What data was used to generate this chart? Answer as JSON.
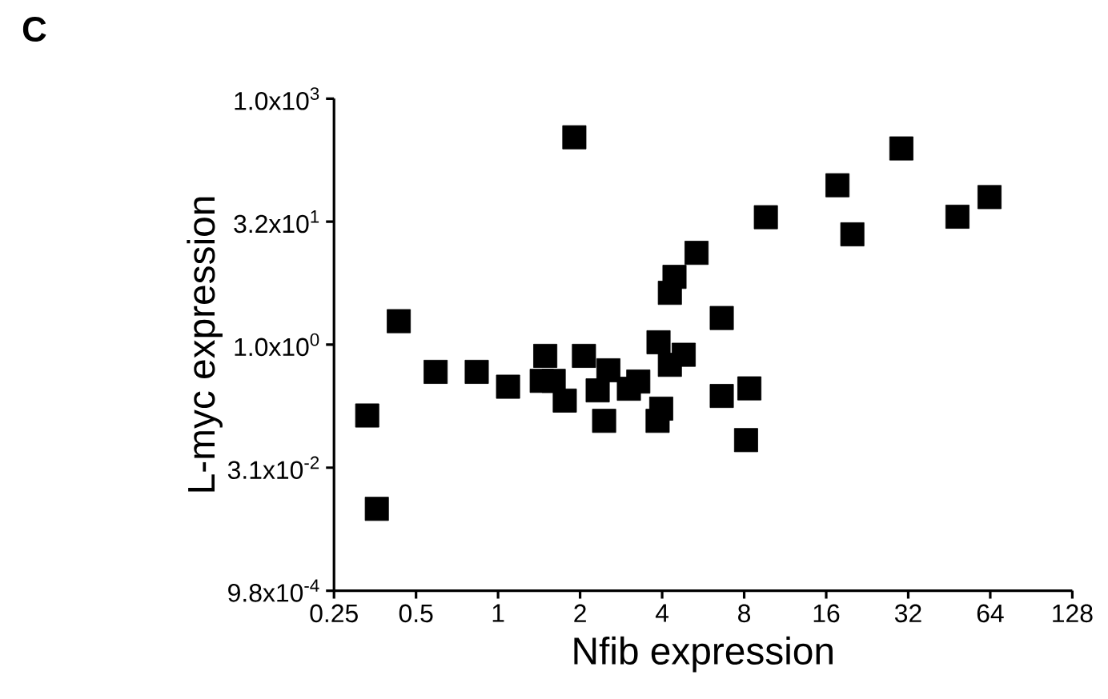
{
  "chart_data": {
    "type": "scatter",
    "title": "C",
    "xlabel": "Nfib expression",
    "ylabel": "L-myc expression",
    "log": "xy",
    "marker": "square",
    "xlim": [
      0.25,
      128
    ],
    "xticks": [
      0.25,
      0.5,
      1,
      2,
      4,
      8,
      16,
      32,
      64,
      128
    ],
    "ylim": [
      0.0009765625,
      1024
    ],
    "yticks": [
      {
        "value": 0.0009765625,
        "label": "9.8x10$^{-4}$"
      },
      {
        "value": 0.03125,
        "label": "3.1x10$^{-2}$"
      },
      {
        "value": 1,
        "label": "1.0x10$^{0}$"
      },
      {
        "value": 32,
        "label": "3.2x10$^{1}$"
      },
      {
        "value": 1024,
        "label": "1.0x10$^{3}$"
      }
    ],
    "series": [
      {
        "color": "#000000",
        "x": [
          0.331,
          0.359,
          0.432,
          0.59,
          0.835,
          1.088,
          1.446,
          1.49,
          1.6,
          1.757,
          1.905,
          2.066,
          2.32,
          2.54,
          2.45,
          3.02,
          3.27,
          3.88,
          3.97,
          3.85,
          4.27,
          4.8,
          4.27,
          4.44,
          5.35,
          6.62,
          6.62,
          8.36,
          8.13,
          9.61,
          17.6,
          19.96,
          30.2,
          48.5,
          63.6
        ],
        "values": [
          0.136,
          0.0098,
          1.94,
          0.465,
          0.465,
          0.306,
          0.361,
          0.73,
          0.361,
          0.207,
          345,
          0.73,
          0.276,
          0.486,
          0.117,
          0.289,
          0.354,
          1.07,
          0.165,
          0.117,
          0.567,
          0.753,
          4.31,
          6.76,
          13.3,
          2.12,
          0.236,
          0.292,
          0.068,
          36.3,
          89.3,
          22.4,
          252,
          36.8,
          64
        ]
      }
    ]
  }
}
